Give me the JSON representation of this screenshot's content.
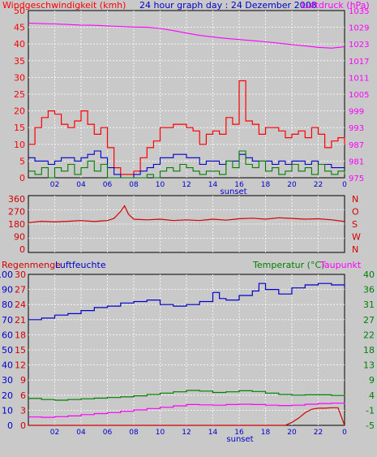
{
  "header": {
    "wind_label": "Windgeschwindigkeit (kmh)",
    "title": "24 hour graph day : 24 Dezember 2008",
    "pressure_label": "Luftdruck (hPa)"
  },
  "labels": {
    "sunset": "sunset",
    "rain_label": "Regenmenge",
    "humidity_label": "Luftfeuchte",
    "temp_label": "Temperatur (°C)",
    "dew_label": "Taupunkt"
  },
  "colors": {
    "wind": "#ff0000",
    "gust": "#ff0000",
    "wind_avg": "#0000cc",
    "wind_low": "#008000",
    "pressure": "#ff00ff",
    "direction": "#d40000",
    "humidity": "#0000cc",
    "temperature": "#008000",
    "dewpoint": "#ff00ff",
    "rain": "#d40000"
  },
  "chart_data": [
    {
      "type": "line",
      "name": "wind-pressure",
      "x_tick_labels": [
        "02",
        "04",
        "06",
        "08",
        "10",
        "12",
        "14",
        "16",
        "18",
        "20",
        "22",
        "0"
      ],
      "xlim": [
        0,
        24
      ],
      "y_left": {
        "label": "Windgeschwindigkeit (kmh)",
        "ticks": [
          "0",
          "5",
          "10",
          "15",
          "20",
          "25",
          "30",
          "35",
          "40",
          "45",
          "50"
        ],
        "lim": [
          0,
          50
        ]
      },
      "y_right": {
        "label": "Luftdruck (hPa)",
        "ticks": [
          "975",
          "981",
          "987",
          "993",
          "999",
          "1005",
          "1011",
          "1017",
          "1023",
          "1029",
          "1035"
        ],
        "lim": [
          975,
          1035
        ]
      },
      "series": [
        {
          "name": "gust",
          "axis": "left",
          "x": [
            0,
            0.5,
            1,
            1.5,
            2,
            2.5,
            3,
            3.5,
            4,
            4.5,
            5,
            5.5,
            6,
            6.5,
            7,
            7.5,
            8,
            8.5,
            9,
            9.5,
            10,
            10.5,
            11,
            11.5,
            12,
            12.5,
            13,
            13.5,
            14,
            14.5,
            15,
            15.5,
            16,
            16.5,
            17,
            17.5,
            18,
            18.5,
            19,
            19.5,
            20,
            20.5,
            21,
            21.5,
            22,
            22.5,
            23,
            23.5,
            24
          ],
          "y": [
            10,
            15,
            18,
            20,
            19,
            16,
            15,
            17,
            20,
            16,
            13,
            15,
            9,
            3,
            1,
            1,
            2,
            6,
            9,
            11,
            15,
            15,
            16,
            16,
            15,
            14,
            10,
            13,
            14,
            13,
            18,
            16,
            29,
            17,
            16,
            13,
            15,
            15,
            14,
            12,
            13,
            14,
            12,
            15,
            13,
            9,
            11,
            12,
            10
          ]
        },
        {
          "name": "wind_avg",
          "axis": "left",
          "x": [
            0,
            0.5,
            1,
            1.5,
            2,
            2.5,
            3,
            3.5,
            4,
            4.5,
            5,
            5.5,
            6,
            6.5,
            7,
            7.5,
            8,
            8.5,
            9,
            9.5,
            10,
            10.5,
            11,
            11.5,
            12,
            12.5,
            13,
            13.5,
            14,
            14.5,
            15,
            15.5,
            16,
            16.5,
            17,
            17.5,
            18,
            18.5,
            19,
            19.5,
            20,
            20.5,
            21,
            21.5,
            22,
            22.5,
            23,
            23.5,
            24
          ],
          "y": [
            6,
            5,
            5,
            4,
            5,
            6,
            6,
            5,
            6,
            7,
            8,
            6,
            3,
            1,
            0,
            0,
            1,
            2,
            3,
            4,
            6,
            6,
            7,
            7,
            6,
            6,
            4,
            5,
            5,
            4,
            5,
            5,
            7,
            6,
            5,
            5,
            5,
            4,
            5,
            4,
            5,
            5,
            4,
            5,
            4,
            4,
            3,
            3,
            3
          ]
        },
        {
          "name": "wind_low",
          "axis": "left",
          "x": [
            0,
            0.5,
            1,
            1.5,
            2,
            2.5,
            3,
            3.5,
            4,
            4.5,
            5,
            5.5,
            6,
            6.5,
            7,
            7.5,
            8,
            8.5,
            9,
            9.5,
            10,
            10.5,
            11,
            11.5,
            12,
            12.5,
            13,
            13.5,
            14,
            14.5,
            15,
            15.5,
            16,
            16.5,
            17,
            17.5,
            18,
            18.5,
            19,
            19.5,
            20,
            20.5,
            21,
            21.5,
            22,
            22.5,
            23,
            23.5,
            24
          ],
          "y": [
            2,
            1,
            3,
            0,
            3,
            2,
            4,
            1,
            3,
            5,
            2,
            4,
            0,
            0,
            0,
            0,
            0,
            0,
            1,
            0,
            2,
            3,
            2,
            4,
            3,
            2,
            1,
            2,
            2,
            1,
            5,
            3,
            8,
            4,
            3,
            5,
            2,
            3,
            1,
            2,
            4,
            2,
            3,
            1,
            4,
            2,
            1,
            2,
            1
          ]
        },
        {
          "name": "pressure",
          "axis": "right",
          "x": [
            0,
            1,
            2,
            3,
            4,
            5,
            6,
            7,
            8,
            9,
            10,
            11,
            12,
            13,
            14,
            15,
            16,
            17,
            18,
            19,
            20,
            21,
            22,
            23,
            24
          ],
          "y": [
            1030.5,
            1030.3,
            1030.2,
            1030,
            1029.8,
            1029.7,
            1029.5,
            1029.3,
            1029.1,
            1029,
            1028.6,
            1027.8,
            1026.9,
            1026.1,
            1025.5,
            1025,
            1024.6,
            1024.2,
            1023.8,
            1023.3,
            1022.8,
            1022.3,
            1021.8,
            1021.5,
            1022
          ]
        }
      ]
    },
    {
      "type": "line",
      "name": "wind-direction",
      "y_left_ticks": [
        "0",
        "90",
        "180",
        "270",
        "360"
      ],
      "y_right_ticks": [
        "N",
        "W",
        "S",
        "O",
        "N"
      ],
      "ylim": [
        0,
        360
      ],
      "series": [
        {
          "name": "direction",
          "x": [
            0,
            1,
            2,
            3,
            4,
            5,
            6,
            6.5,
            7,
            7.3,
            7.6,
            8,
            9,
            10,
            11,
            12,
            13,
            14,
            15,
            16,
            17,
            18,
            19,
            20,
            21,
            22,
            23,
            24
          ],
          "y": [
            190,
            200,
            195,
            200,
            205,
            198,
            205,
            220,
            270,
            310,
            250,
            215,
            210,
            215,
            205,
            210,
            205,
            215,
            208,
            218,
            222,
            215,
            225,
            220,
            215,
            218,
            210,
            198
          ]
        }
      ]
    },
    {
      "type": "line",
      "name": "humidity-temperature",
      "x_tick_labels": [
        "02",
        "04",
        "06",
        "08",
        "10",
        "12",
        "14",
        "16",
        "18",
        "20",
        "22",
        "0"
      ],
      "xlim": [
        0,
        24
      ],
      "y_rain": {
        "label": "Regenmenge",
        "ticks": [
          "0",
          "3",
          "6",
          "9",
          "12",
          "15",
          "18",
          "21",
          "24",
          "27",
          "30"
        ],
        "lim": [
          0,
          30
        ]
      },
      "y_humidity": {
        "label": "Luftfeuchte",
        "ticks": [
          "0",
          "10",
          "20",
          "30",
          "40",
          "50",
          "60",
          "70",
          "80",
          "90",
          "100"
        ],
        "lim": [
          0,
          100
        ]
      },
      "y_temp": {
        "label": "Temperatur (°C)",
        "ticks": [
          "-5",
          "-1",
          "4",
          "9",
          "13",
          "18",
          "22",
          "27",
          "31",
          "36",
          "40"
        ],
        "lim": [
          -5,
          40
        ]
      },
      "series": [
        {
          "name": "humidity",
          "axis": "humidity",
          "x": [
            0,
            1,
            2,
            3,
            4,
            5,
            6,
            7,
            8,
            9,
            10,
            11,
            12,
            13,
            14,
            14.5,
            15,
            16,
            17,
            17.5,
            18,
            19,
            20,
            21,
            22,
            23,
            24
          ],
          "y": [
            70,
            71,
            73,
            74,
            76,
            78,
            79,
            81,
            82,
            83,
            80,
            79,
            80,
            82,
            88,
            84,
            83,
            86,
            89,
            94,
            90,
            87,
            91,
            93,
            94,
            93,
            92
          ]
        },
        {
          "name": "temperature",
          "axis": "temp",
          "x": [
            0,
            1,
            2,
            3,
            4,
            5,
            6,
            7,
            8,
            9,
            10,
            11,
            12,
            13,
            14,
            15,
            16,
            17,
            18,
            19,
            20,
            21,
            22,
            23,
            24
          ],
          "y": [
            3,
            2.7,
            2.5,
            2.7,
            2.9,
            3.1,
            3.3,
            3.5,
            3.8,
            4.2,
            4.6,
            5.0,
            5.4,
            5.2,
            4.8,
            5.0,
            5.3,
            5.1,
            4.6,
            4.2,
            4.0,
            4.1,
            4.1,
            3.9,
            3.8
          ]
        },
        {
          "name": "dewpoint",
          "axis": "temp",
          "x": [
            0,
            1,
            2,
            3,
            4,
            5,
            6,
            7,
            8,
            9,
            10,
            11,
            12,
            13,
            14,
            15,
            16,
            17,
            18,
            19,
            20,
            21,
            22,
            23,
            24
          ],
          "y": [
            -2.5,
            -2.6,
            -2.4,
            -2.2,
            -1.8,
            -1.5,
            -1.2,
            -0.8,
            -0.4,
            0.0,
            0.4,
            0.8,
            1.2,
            1.1,
            1.0,
            1.2,
            1.3,
            1.2,
            1.0,
            0.9,
            1.0,
            1.3,
            1.5,
            1.6,
            1.4
          ]
        },
        {
          "name": "rain",
          "axis": "rain",
          "x": [
            0,
            17,
            19.5,
            20,
            20.5,
            21,
            21.5,
            22,
            22.5,
            23,
            23.5,
            24
          ],
          "y": [
            0,
            0,
            0,
            0.6,
            1.4,
            2.5,
            3.2,
            3.4,
            3.4,
            3.5,
            3.5,
            0
          ]
        }
      ]
    }
  ]
}
